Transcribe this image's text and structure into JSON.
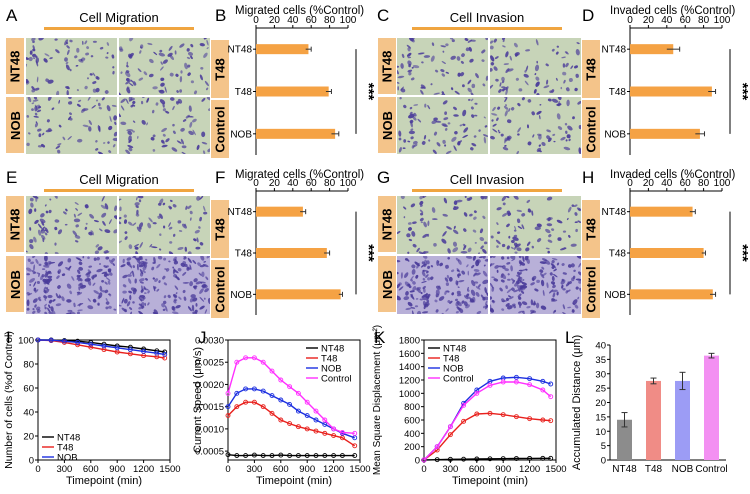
{
  "panels": {
    "A": {
      "letter": "A",
      "title": "Cell Migration",
      "rows": [
        "NT48",
        "NOB"
      ]
    },
    "C": {
      "letter": "C",
      "title": "Cell Invasion",
      "rows": [
        "NT48",
        "NOB"
      ]
    },
    "E": {
      "letter": "E",
      "title": "Cell Migration",
      "rows": [
        "NT48",
        "NOB"
      ]
    },
    "G": {
      "letter": "G",
      "title": "Cell Invasion",
      "rows": [
        "NT48",
        "NOB"
      ]
    },
    "side_labels": [
      "T48",
      "Control"
    ]
  },
  "colors": {
    "bar": "#f5a244",
    "header": "#f4c48a",
    "micro_bg": "#c7d4b8",
    "cells": "#4a3b9a",
    "nt48": "#000000",
    "t48": "#e8201c",
    "nob": "#1c2fe0",
    "control": "#ff2fff",
    "bar_nt48": "#8c8c8c",
    "bar_t48": "#f08c86",
    "bar_nob": "#9c9cf5",
    "bar_control": "#f390f2"
  },
  "chart_data": [
    {
      "id": "B",
      "type": "bar",
      "orientation": "horizontal",
      "title": "Migrated cells (%Control)",
      "categories": [
        "NT48",
        "T48",
        "NOB"
      ],
      "values": [
        57,
        79,
        86
      ],
      "errors": [
        3,
        3,
        4
      ],
      "xlim": [
        0,
        100
      ],
      "xticks": [
        "0",
        "20",
        "40",
        "60",
        "80",
        "100"
      ],
      "significance": "***"
    },
    {
      "id": "D",
      "type": "bar",
      "orientation": "horizontal",
      "title": "Invaded cells (%Control)",
      "categories": [
        "NT48",
        "T48",
        "NOB"
      ],
      "values": [
        47,
        89,
        76
      ],
      "errors": [
        7,
        4,
        5
      ],
      "xlim": [
        0,
        100
      ],
      "xticks": [
        "0",
        "20",
        "40",
        "60",
        "80",
        "100"
      ],
      "significance": "***"
    },
    {
      "id": "F",
      "type": "bar",
      "orientation": "horizontal",
      "title": "Migrated cells (%Control)",
      "categories": [
        "NT48",
        "T48",
        "NOB"
      ],
      "values": [
        51,
        77,
        92
      ],
      "errors": [
        3,
        3,
        2
      ],
      "xlim": [
        0,
        100
      ],
      "xticks": [
        "0",
        "20",
        "40",
        "60",
        "80",
        "100"
      ],
      "significance": "***"
    },
    {
      "id": "H",
      "type": "bar",
      "orientation": "horizontal",
      "title": "Invaded cells (%Control)",
      "categories": [
        "NT48",
        "T48",
        "NOB"
      ],
      "values": [
        68,
        80,
        90
      ],
      "errors": [
        3,
        2,
        3
      ],
      "xlim": [
        0,
        100
      ],
      "xticks": [
        "0",
        "20",
        "40",
        "60",
        "80",
        "100"
      ],
      "significance": "***"
    },
    {
      "id": "I",
      "type": "line",
      "ylabel": "Number of cells (%of Control)",
      "xlabel": "Timepoint (min)",
      "xlim": [
        0,
        1500
      ],
      "ylim": [
        0,
        100
      ],
      "xticks": [
        0,
        300,
        600,
        900,
        1200,
        1500
      ],
      "yticks": [
        0,
        20,
        40,
        60,
        80,
        100
      ],
      "x": [
        0,
        150,
        300,
        450,
        600,
        750,
        900,
        1050,
        1200,
        1350,
        1440
      ],
      "series": [
        {
          "name": "NT48",
          "values": [
            100,
            100,
            99.5,
            99,
            98,
            96.5,
            95,
            94,
            92.5,
            91,
            90
          ]
        },
        {
          "name": "T48",
          "values": [
            100,
            99.5,
            98,
            96,
            94,
            92,
            90,
            88.5,
            87,
            86,
            85
          ]
        },
        {
          "name": "NOB",
          "values": [
            100,
            99.8,
            99,
            98,
            96.5,
            95,
            93.5,
            92,
            90.5,
            89,
            88
          ]
        }
      ]
    },
    {
      "id": "J",
      "type": "line",
      "ylabel": "Current Speed (μm/s)",
      "xlabel": "Timepoint (min)",
      "xlim": [
        0,
        1500
      ],
      "ylim": [
        0.0003,
        0.003
      ],
      "xticks": [
        0,
        150,
        300,
        450,
        600,
        750,
        900,
        1050,
        1200,
        1350,
        1500
      ],
      "xtick_labels": [
        "0",
        "300",
        "600",
        "900",
        "1200",
        "1500"
      ],
      "yticks": [
        "0.0005",
        "0.0010",
        "0.0015",
        "0.0020",
        "0.0025",
        "0.0030"
      ],
      "x": [
        0,
        100,
        200,
        300,
        400,
        500,
        600,
        700,
        800,
        900,
        1000,
        1100,
        1200,
        1300,
        1440
      ],
      "series": [
        {
          "name": "NT48",
          "values": [
            0.00042,
            0.0004,
            0.0004,
            0.00041,
            0.0004,
            0.0004,
            0.00041,
            0.0004,
            0.0004,
            0.0004,
            0.0004,
            0.0004,
            0.0004,
            0.0004,
            0.0004
          ]
        },
        {
          "name": "T48",
          "values": [
            0.0013,
            0.0015,
            0.0016,
            0.0016,
            0.0015,
            0.00135,
            0.0012,
            0.00112,
            0.00105,
            0.001,
            0.00095,
            0.0009,
            0.00085,
            0.0008,
            0.00062
          ]
        },
        {
          "name": "NOB",
          "values": [
            0.0015,
            0.0018,
            0.0019,
            0.0019,
            0.00185,
            0.00175,
            0.00165,
            0.00155,
            0.0014,
            0.0013,
            0.0012,
            0.0011,
            0.001,
            0.0009,
            0.0008
          ]
        },
        {
          "name": "Control",
          "values": [
            0.0018,
            0.0025,
            0.0026,
            0.0026,
            0.0025,
            0.0023,
            0.0021,
            0.00195,
            0.0018,
            0.0016,
            0.0014,
            0.0012,
            0.001,
            0.00092,
            0.0009
          ]
        }
      ]
    },
    {
      "id": "K",
      "type": "line",
      "ylabel": "Mean Square Displacement (μm²)",
      "xlabel": "Timepoint (min)",
      "xlim": [
        0,
        1500
      ],
      "ylim": [
        0,
        1800
      ],
      "xticks": [
        "0",
        "300",
        "600",
        "900",
        "1200",
        "1500"
      ],
      "yticks": [
        "0",
        "200",
        "400",
        "600",
        "800",
        "1000",
        "1200",
        "1400",
        "1600",
        "1800"
      ],
      "x": [
        0,
        150,
        300,
        450,
        600,
        750,
        900,
        1050,
        1200,
        1350,
        1440
      ],
      "series": [
        {
          "name": "NT48",
          "values": [
            0,
            5,
            10,
            12,
            15,
            18,
            20,
            22,
            24,
            25,
            25
          ]
        },
        {
          "name": "T48",
          "values": [
            0,
            150,
            380,
            580,
            690,
            700,
            680,
            650,
            620,
            600,
            590
          ]
        },
        {
          "name": "NOB",
          "values": [
            0,
            200,
            500,
            850,
            1050,
            1180,
            1230,
            1240,
            1220,
            1180,
            1140
          ]
        },
        {
          "name": "Control",
          "values": [
            0,
            200,
            500,
            820,
            1000,
            1120,
            1170,
            1170,
            1130,
            1050,
            950
          ]
        }
      ]
    },
    {
      "id": "L",
      "type": "bar",
      "ylabel": "Accumulated Distance (μm)",
      "categories": [
        "NT48",
        "T48",
        "NOB",
        "Control"
      ],
      "values": [
        14,
        27.5,
        27.5,
        36.3
      ],
      "errors": [
        2.5,
        1,
        3,
        0.8
      ],
      "ylim": [
        0,
        40
      ],
      "yticks": [
        "0",
        "5",
        "10",
        "15",
        "20",
        "25",
        "30",
        "35",
        "40"
      ]
    }
  ],
  "panel_letters": {
    "B": "B",
    "D": "D",
    "F": "F",
    "H": "H",
    "I": "I",
    "J": "J",
    "K": "K",
    "L": "L"
  }
}
